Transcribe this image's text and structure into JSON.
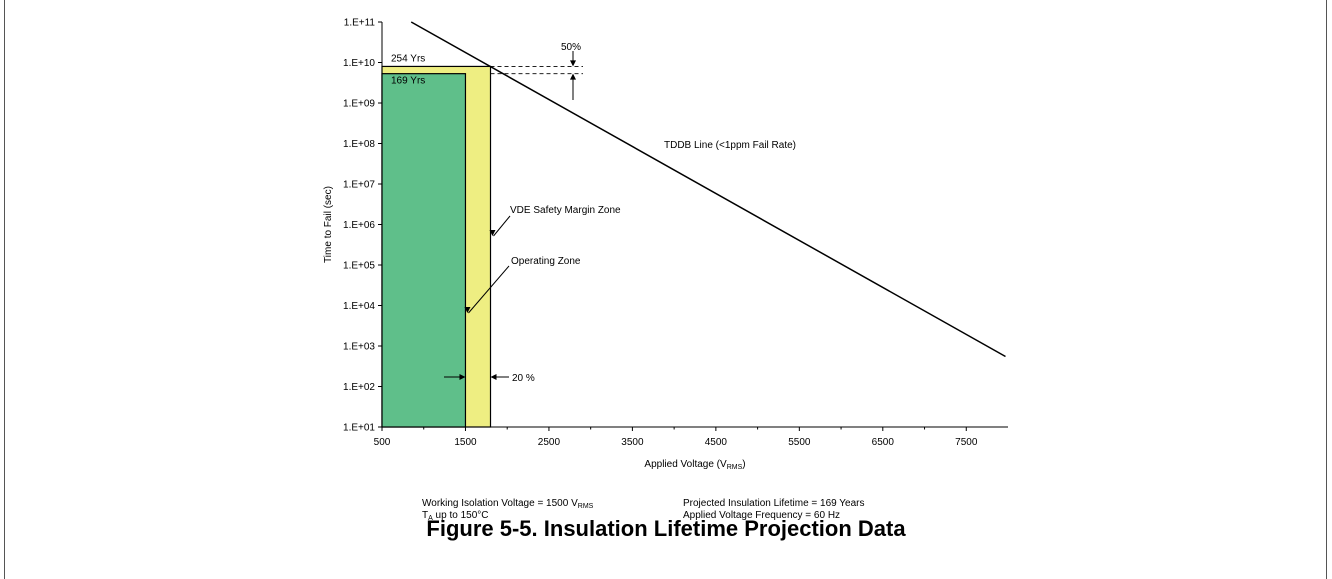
{
  "chart_data": {
    "type": "line",
    "title": "",
    "xlabel": "Applied Voltage (V",
    "xlabel_sub": "RMS",
    "xlabel_end": ")",
    "ylabel": "Time to Fail (sec)",
    "y_scale": "log",
    "xlim": [
      500,
      8000
    ],
    "ylim": [
      10,
      100000000000
    ],
    "x_ticks": [
      500,
      1500,
      2500,
      3500,
      4500,
      5500,
      6500,
      7500
    ],
    "x_tick_labels": [
      "500",
      "1500",
      "2500",
      "3500",
      "4500",
      "5500",
      "6500",
      "7500"
    ],
    "y_ticks": [
      10,
      100,
      1000,
      10000,
      100000,
      1000000,
      10000000,
      100000000,
      1000000000,
      10000000000,
      100000000000
    ],
    "y_tick_labels": [
      "1.E+01",
      "1.E+02",
      "1.E+03",
      "1.E+04",
      "1.E+05",
      "1.E+06",
      "1.E+07",
      "1.E+08",
      "1.E+09",
      "1.E+10",
      "1.E+11"
    ],
    "grid": false,
    "series": [
      {
        "name": "TDDB Line (<1ppm Fail Rate)",
        "x": [
          850,
          7970
        ],
        "y": [
          100000000000,
          550
        ],
        "color": "#000000"
      }
    ],
    "zones": [
      {
        "label": "VDE Safety Margin Zone",
        "x": [
          500,
          1800
        ],
        "y": [
          10,
          8000000000
        ],
        "color": "#eeee82"
      },
      {
        "label": "Operating  Zone",
        "x": [
          500,
          1500
        ],
        "y": [
          10,
          5300000000
        ],
        "color": "#5fbf8a"
      }
    ],
    "annotations": {
      "top_label": "254 Yrs",
      "inner_label": "169 Yrs",
      "margin_pct": "50%",
      "width_pct": "20 %"
    }
  },
  "notes": {
    "left_line1": "Working Isolation Voltage = 1500 V",
    "left_line1_sub": "RMS",
    "left_line2_prefix": "T",
    "left_line2_sub": "A",
    "left_line2_rest": " up to 150°C",
    "right_line1": "Projected Insulation Lifetime = 169 Years",
    "right_line2": "Applied Voltage Frequency = 60 Hz"
  },
  "caption": "Figure 5-5. Insulation Lifetime Projection Data"
}
